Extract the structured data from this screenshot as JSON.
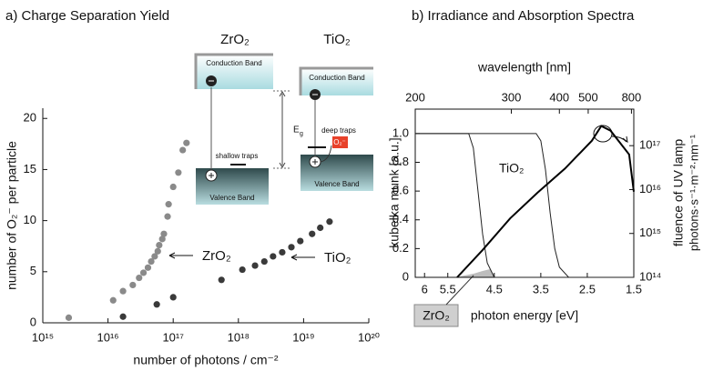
{
  "chart_data": [
    {
      "type": "scatter",
      "title": "a) Charge Separation Yield",
      "x_label": "number of photons / cm⁻²",
      "y_label": "number of O₂⁻ per particle",
      "xscale": "log",
      "xlim": [
        1000000000000000.0,
        1e+20
      ],
      "xticks": [
        {
          "value": 1000000000000000.0,
          "label": "10¹⁵"
        },
        {
          "value": 1e+16,
          "label": "10¹⁶"
        },
        {
          "value": 1e+17,
          "label": "10¹⁷"
        },
        {
          "value": 1e+18,
          "label": "10¹⁸"
        },
        {
          "value": 1e+19,
          "label": "10¹⁹"
        },
        {
          "value": 1e+20,
          "label": "10²⁰"
        }
      ],
      "ylim": [
        0,
        21
      ],
      "yticks": [
        0,
        5,
        10,
        15,
        20
      ],
      "series": [
        {
          "name": "ZrO₂",
          "color": "#8a8a8a",
          "x": [
            2500000000000000.0,
            1.2e+16,
            1.7e+16,
            2.4e+16,
            3e+16,
            3.5e+16,
            4.1e+16,
            4.6e+16,
            5.2e+16,
            5.8e+16,
            6.1e+16,
            6.8e+16,
            7.2e+16,
            8.2e+16,
            8.5e+16,
            1e+17,
            1.2e+17,
            1.4e+17,
            1.6e+17
          ],
          "values": [
            0.5,
            2.2,
            3.1,
            3.7,
            4.4,
            4.9,
            5.4,
            6.0,
            6.5,
            7.0,
            7.6,
            8.2,
            8.7,
            10.4,
            11.6,
            13.3,
            14.7,
            16.9,
            17.6
          ]
        },
        {
          "name": "TiO₂",
          "color": "#3a3a3a",
          "x": [
            1.7e+16,
            5.6e+16,
            1e+17,
            5.5e+17,
            1.15e+18,
            1.8e+18,
            2.5e+18,
            3.4e+18,
            4.7e+18,
            6.5e+18,
            8.9e+18,
            1.35e+19,
            1.8e+19,
            2.5e+19
          ],
          "values": [
            0.6,
            1.8,
            2.5,
            4.2,
            5.2,
            5.6,
            6.0,
            6.5,
            6.9,
            7.4,
            8.0,
            8.7,
            9.3,
            9.9
          ]
        }
      ],
      "inset": {
        "materials": [
          "ZrO₂",
          "TiO₂"
        ],
        "conduction_band": "Conduction Band",
        "valence_band": "Valence Band",
        "shallow_traps": "shallow traps",
        "deep_traps": "deep traps",
        "gap": {
          "symbol": "E",
          "subscript": "g"
        },
        "adsorbate": "O₂⁻"
      }
    },
    {
      "type": "line",
      "title": "b) Irradiance and Absorption Spectra",
      "x_label": "photon energy [eV]",
      "xlim": [
        6.2,
        1.5
      ],
      "xticks": [
        6,
        5.5,
        4.5,
        3.5,
        2.5,
        1.5
      ],
      "x2_label": "wavelength [nm]",
      "x2scale": "reciprocal",
      "x2lim": [
        200,
        827
      ],
      "x2ticks": [
        200,
        300,
        400,
        500,
        800
      ],
      "y_label": "kubelka munk [a.u.]",
      "ylim": [
        0,
        1.17
      ],
      "yticks": [
        0,
        0.2,
        0.4,
        0.6,
        0.8,
        {
          "value": 1,
          "label": "1.0"
        }
      ],
      "y2_label": "fluence of UV lamp",
      "y2_units": "photons·s⁻¹·m⁻²·nm⁻¹",
      "y2scale": "log",
      "y2lim": [
        100000000000000.0,
        6.8e+17
      ],
      "y2ticks": [
        {
          "value": 100000000000000.0,
          "label": "10¹⁴"
        },
        {
          "value": 1000000000000000.0,
          "label": "10¹⁵"
        },
        {
          "value": 1e+16,
          "label": "10¹⁶"
        },
        {
          "value": 1e+17,
          "label": "10¹⁷"
        }
      ],
      "series": [
        {
          "name": "ZrO₂",
          "color": "#222222",
          "x": [
            6.2,
            5.05,
            4.95,
            4.85,
            4.75,
            4.65,
            4.5,
            1.5
          ],
          "values": [
            1,
            1,
            0.9,
            0.6,
            0.3,
            0.1,
            0,
            0
          ]
        },
        {
          "name": "TiO₂",
          "color": "#222222",
          "x": [
            6.2,
            3.6,
            3.5,
            3.4,
            3.3,
            3.2,
            3.1,
            2.9,
            1.5
          ],
          "values": [
            1,
            1,
            0.95,
            0.75,
            0.45,
            0.2,
            0.07,
            0,
            0
          ]
        },
        {
          "axis": "y2",
          "color": "#000000",
          "x": [
            5.3,
            4.75,
            4.16,
            3.57,
            2.98,
            2.4,
            2.2,
            2.0,
            1.6,
            1.5
          ],
          "values": [
            100000000000000.0,
            420000000000000.0,
            2200000000000000.0,
            8500000000000000.0,
            3e+16,
            1.3e+17,
            2.8e+17,
            2.2e+17,
            6.3e+16,
            9000000000000000.0
          ]
        }
      ]
    }
  ]
}
